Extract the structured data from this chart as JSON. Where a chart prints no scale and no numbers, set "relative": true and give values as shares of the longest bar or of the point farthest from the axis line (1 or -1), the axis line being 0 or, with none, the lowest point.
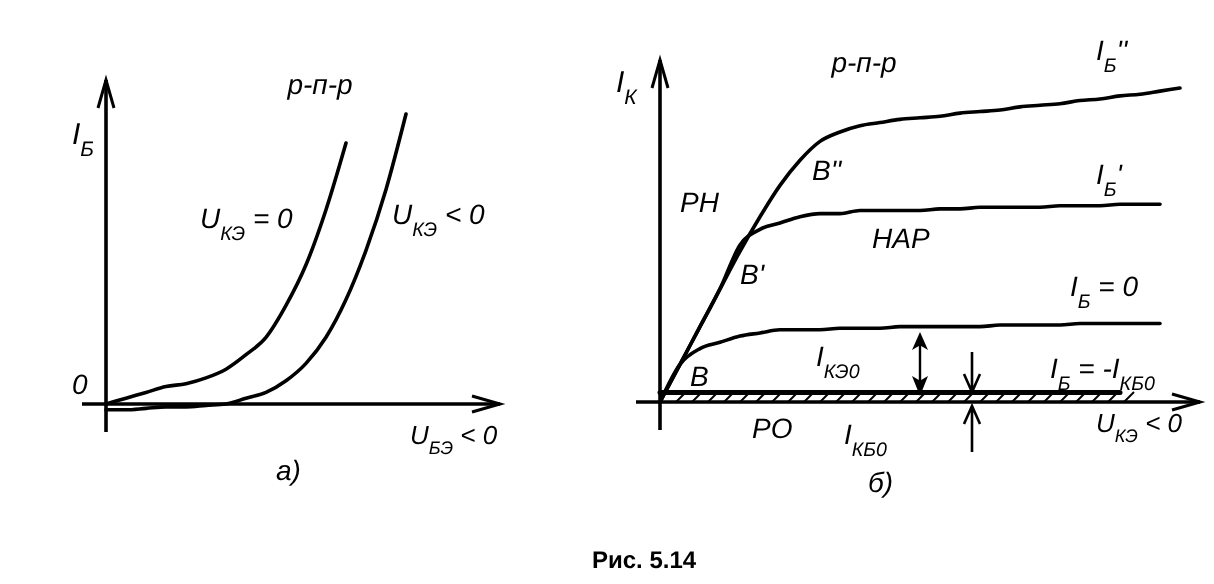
{
  "chart_data": [
    {
      "type": "line",
      "relative": true,
      "title": "р-п-р",
      "ylabel": "I$_{Б}$",
      "xlabel": "U$_{БЭ}$ < 0",
      "marker": "none",
      "line_style": "solid",
      "categories": [
        null,
        null,
        null,
        null,
        null,
        null,
        null,
        null,
        null,
        null,
        null,
        null,
        null,
        null,
        null,
        null,
        null,
        null,
        null,
        null
      ],
      "series": [
        {
          "name": "U$_{КЭ}$ = 0",
          "color": "#000000",
          "values": [
            0,
            0.02,
            0.04,
            0.06,
            0.07,
            0.09,
            0.12,
            0.17,
            0.23,
            0.34,
            0.48,
            0.67,
            0.9,
            null,
            null,
            null,
            null,
            null,
            null,
            null
          ]
        },
        {
          "name": "U$_{КЭ}$ < 0",
          "color": "#000000",
          "values": [
            -0.02,
            -0.02,
            -0.015,
            -0.01,
            -0.01,
            -0.005,
            0,
            0.02,
            0.04,
            0.08,
            0.14,
            0.23,
            0.36,
            0.53,
            0.74,
            1,
            null,
            null,
            null,
            null
          ]
        }
      ],
      "annotations": [
        "0",
        "а)"
      ]
    },
    {
      "type": "line",
      "relative": true,
      "title": "р-п-р",
      "ylabel": "I$_{К}$",
      "xlabel": "U$_{КЭ}$ < 0",
      "marker": "none",
      "line_style": "solid",
      "categories": [
        null,
        null,
        null,
        null,
        null,
        null,
        null,
        null,
        null,
        null,
        null,
        null,
        null,
        null,
        null,
        null,
        null,
        null,
        null,
        null,
        null,
        null,
        null,
        null,
        null,
        null,
        null
      ],
      "series": [
        {
          "name": "I$_{Б}$''",
          "color": "#000000",
          "values": [
            0,
            0.12,
            0.24,
            0.36,
            0.48,
            0.59,
            0.69,
            0.77,
            0.83,
            0.86,
            0.88,
            0.89,
            0.9,
            0.905,
            0.91,
            0.92,
            0.925,
            0.93,
            0.94,
            0.945,
            0.95,
            0.96,
            0.965,
            0.975,
            0.98,
            0.99,
            1
          ]
        },
        {
          "name": "I$_{Б}$'",
          "color": "#000000",
          "values": [
            0,
            0.12,
            0.24,
            0.36,
            0.5,
            0.55,
            0.57,
            0.59,
            0.6,
            0.6,
            0.61,
            0.61,
            0.61,
            0.61,
            0.615,
            0.615,
            0.62,
            0.62,
            0.62,
            0.62,
            0.625,
            0.625,
            0.625,
            0.63,
            0.63,
            0.63,
            null
          ]
        },
        {
          "name": "I$_{Б}$ = 0",
          "color": "#000000",
          "values": [
            0,
            0.12,
            0.17,
            0.19,
            0.21,
            0.22,
            0.23,
            0.23,
            0.23,
            0.235,
            0.235,
            0.235,
            0.24,
            0.24,
            0.24,
            0.24,
            0.24,
            0.245,
            0.245,
            0.245,
            0.245,
            0.25,
            0.25,
            0.25,
            0.25,
            0.25,
            null
          ]
        },
        {
          "name": "I$_{Б}$ = -I$_{КБ0}$",
          "color": "#000000",
          "values": [
            0.03,
            0.03,
            0.03,
            0.03,
            0.03,
            0.03,
            0.03,
            0.03,
            0.03,
            0.03,
            0.03,
            0.03,
            0.03,
            0.03,
            0.03,
            0.03,
            0.03,
            0.03,
            0.03,
            0.03,
            0.03,
            0.03,
            0.03,
            0.03,
            null,
            null,
            null
          ]
        }
      ],
      "annotations": [
        "РН",
        "НАР",
        "РО",
        "В",
        "В'",
        "В''",
        "I$_{КЭ0}$",
        "I$_{КБ0}$",
        "б)",
        "Рис. 5.14"
      ]
    }
  ]
}
